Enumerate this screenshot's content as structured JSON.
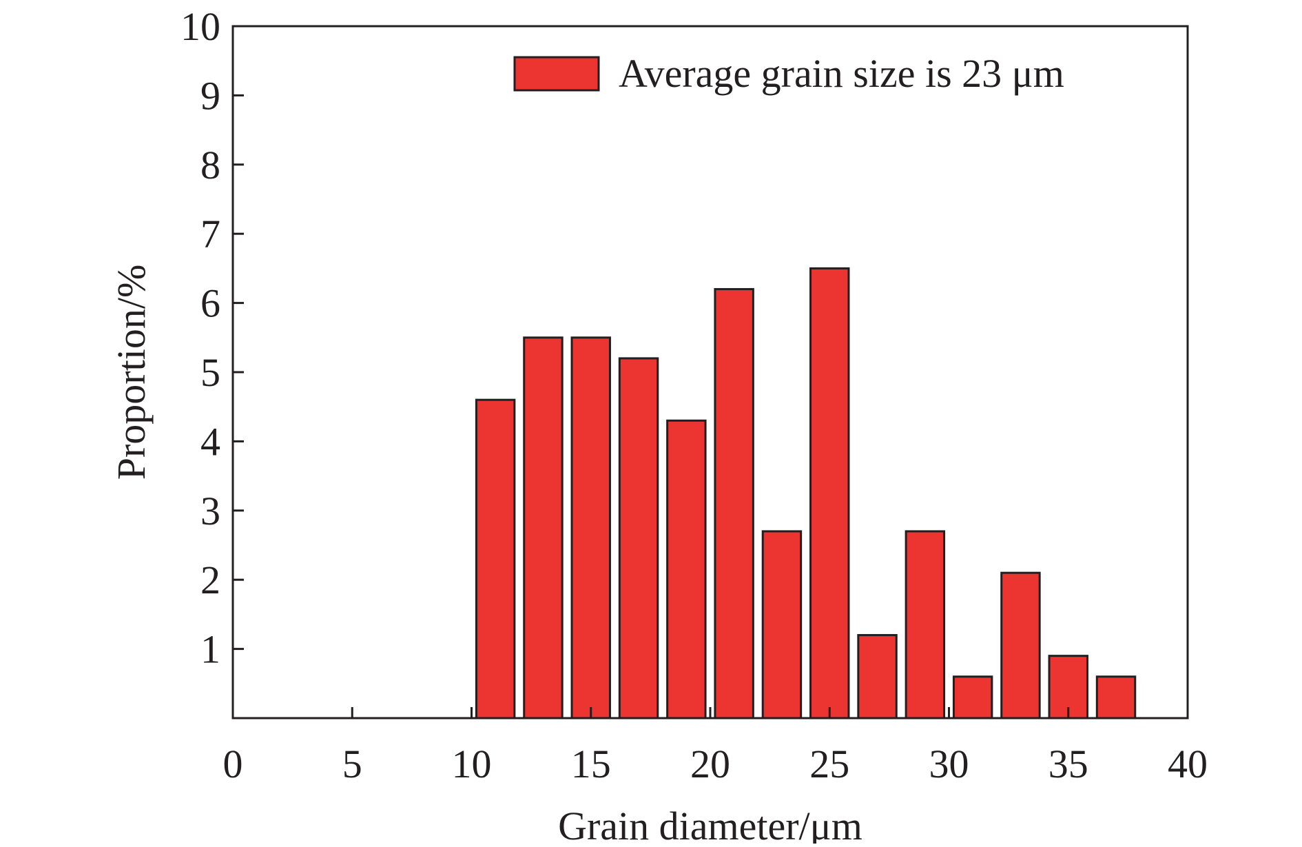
{
  "chart_data": {
    "type": "bar",
    "xlabel": "Grain diameter/μm",
    "ylabel": "Proportion/%",
    "xlim": [
      0,
      40
    ],
    "ylim": [
      0,
      10
    ],
    "x_ticks": [
      "0",
      "5",
      "10",
      "15",
      "20",
      "25",
      "30",
      "35",
      "40"
    ],
    "y_ticks": [
      "1",
      "2",
      "3",
      "4",
      "5",
      "6",
      "7",
      "8",
      "9",
      "10"
    ],
    "grid": false,
    "legend_position": "top-right",
    "bar_width": 1.6,
    "series": [
      {
        "name": "Average grain size is 23 μm",
        "color": "#ec3431",
        "edge_color": "#231f20",
        "x": [
          11,
          13,
          15,
          17,
          19,
          21,
          23,
          25,
          27,
          29,
          31,
          33,
          35,
          37
        ],
        "values": [
          4.6,
          5.5,
          5.5,
          5.2,
          4.3,
          6.2,
          2.7,
          6.5,
          1.2,
          2.7,
          0.6,
          2.1,
          0.9,
          0.6
        ]
      }
    ]
  }
}
